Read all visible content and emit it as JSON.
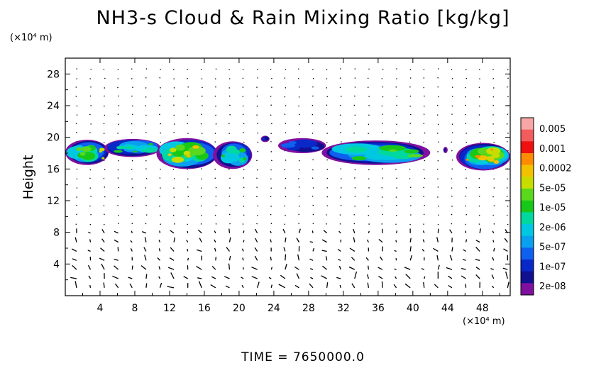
{
  "title": "NH3-s Cloud & Rain Mixing Ratio [kg/kg]",
  "y_unit": "(×10⁴ m)",
  "x_unit": "(×10⁴ m)",
  "time_label": "TIME  =  7650000.0",
  "chart_data": {
    "type": "heatmap",
    "title": "NH3-s Cloud & Rain Mixing Ratio [kg/kg]",
    "xlabel": "",
    "ylabel": "Height",
    "xlim": [
      0,
      51.2
    ],
    "ylim": [
      0,
      30
    ],
    "x_ticks": [
      4,
      8,
      12,
      16,
      20,
      24,
      28,
      32,
      36,
      40,
      44,
      48
    ],
    "y_ticks": [
      4,
      8,
      12,
      16,
      20,
      24,
      28
    ],
    "colorbar": {
      "labels": [
        "0.005",
        "0.001",
        "0.0002",
        "5e-05",
        "1e-05",
        "2e-06",
        "5e-07",
        "1e-07",
        "2e-08"
      ],
      "colors": [
        "#f7a6a6",
        "#f25c5c",
        "#f01010",
        "#ff8c00",
        "#f2c200",
        "#c8dc00",
        "#5ad81e",
        "#18c818",
        "#00d8a0",
        "#00c8e0",
        "#0aa0f0",
        "#1060f0",
        "#0828c8",
        "#101090",
        "#8010a0"
      ]
    },
    "cloud_blobs": [
      {
        "x": [
          0.0,
          5.0
        ],
        "y": [
          16.5,
          19.7
        ],
        "level": 9
      },
      {
        "x": [
          4.5,
          11.0
        ],
        "y": [
          17.5,
          19.8
        ],
        "level": 7
      },
      {
        "x": [
          10.5,
          17.5
        ],
        "y": [
          16.0,
          19.9
        ],
        "level": 10
      },
      {
        "x": [
          17.0,
          21.5
        ],
        "y": [
          16.0,
          19.5
        ],
        "level": 7
      },
      {
        "x": [
          22.5,
          23.5
        ],
        "y": [
          19.4,
          20.2
        ],
        "level": 2
      },
      {
        "x": [
          24.5,
          30.0
        ],
        "y": [
          18.0,
          19.9
        ],
        "level": 3
      },
      {
        "x": [
          29.5,
          42.0
        ],
        "y": [
          16.5,
          19.6
        ],
        "level": 8
      },
      {
        "x": [
          43.5,
          44.0
        ],
        "y": [
          18.0,
          18.8
        ],
        "level": 1
      },
      {
        "x": [
          45.0,
          51.2
        ],
        "y": [
          15.8,
          19.3
        ],
        "level": 11
      }
    ]
  }
}
